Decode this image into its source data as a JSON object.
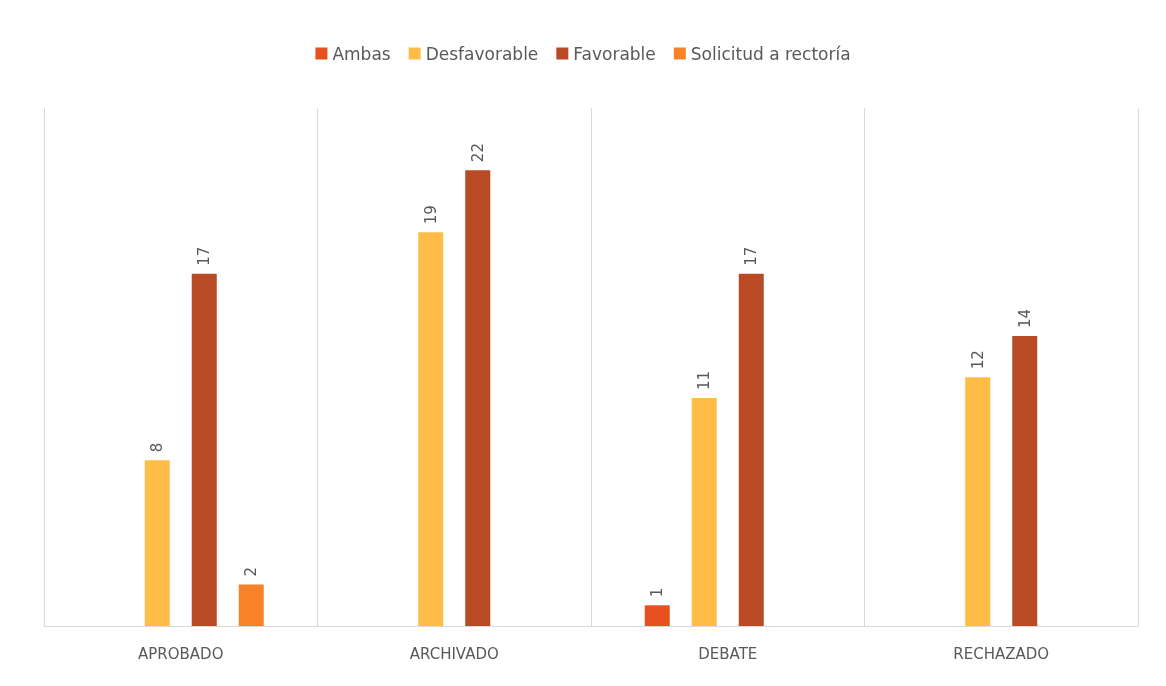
{
  "chart_data": {
    "type": "bar",
    "categories": [
      "APROBADO",
      "ARCHIVADO",
      "DEBATE",
      "RECHAZADO"
    ],
    "series": [
      {
        "name": "Ambas",
        "color": "#e8501f",
        "values": [
          null,
          null,
          1,
          null
        ]
      },
      {
        "name": "Desfavorable",
        "color": "#ffbc47",
        "values": [
          8,
          19,
          11,
          12
        ]
      },
      {
        "name": "Favorable",
        "color": "#b84a26",
        "values": [
          17,
          22,
          17,
          14
        ]
      },
      {
        "name": "Solicitud a rectoría",
        "color": "#f7822a",
        "values": [
          2,
          null,
          null,
          null
        ]
      }
    ],
    "data_labels": true,
    "legend": "top",
    "grid": "x"
  }
}
